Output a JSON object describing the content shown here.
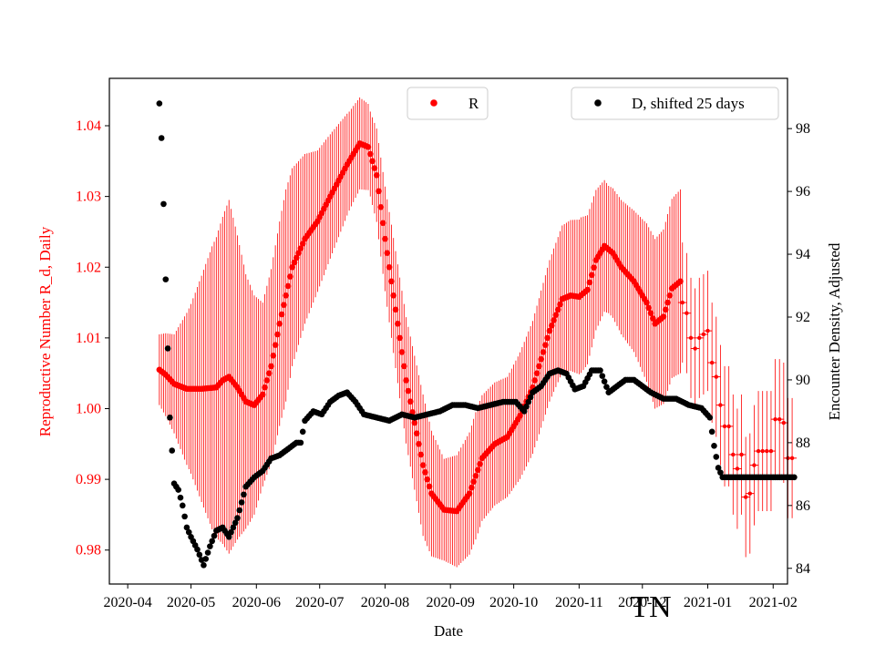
{
  "chart_data": {
    "type": "scatter",
    "title": "",
    "annotation": "TN",
    "xlabel": "Date",
    "ylabel_left": "Reproductive Number R_d, Daily",
    "ylabel_right": "Encounter Density, Adjusted",
    "x_ticks": [
      "2020-04",
      "2020-05",
      "2020-06",
      "2020-07",
      "2020-08",
      "2020-09",
      "2020-10",
      "2020-11",
      "2020-12",
      "2021-01",
      "2021-02"
    ],
    "x_range_days": [
      -8.7,
      312.8
    ],
    "y_left_ticks": [
      "0.98",
      "0.99",
      "1.00",
      "1.01",
      "1.02",
      "1.03",
      "1.04"
    ],
    "y_left_range": [
      0.9752,
      1.0467
    ],
    "y_right_ticks": [
      "84",
      "86",
      "88",
      "90",
      "92",
      "94",
      "96",
      "98"
    ],
    "y_right_range": [
      83.5,
      99.6
    ],
    "colors": {
      "R": "#ff0000",
      "D": "#000000",
      "axis_left": "#ff0000",
      "axis_right": "#000000"
    },
    "legend": {
      "R": {
        "label": "R",
        "placement": "upper-center"
      },
      "D": {
        "label": "D, shifted 25 days",
        "placement": "upper-right"
      }
    },
    "series": [
      {
        "name": "R",
        "axis": "left",
        "style": "dots-with-errorbars",
        "anchors": [
          [
            15,
            1.0055
          ],
          [
            18,
            1.0048
          ],
          [
            22,
            1.0035
          ],
          [
            28,
            1.0028
          ],
          [
            35,
            1.0028
          ],
          [
            42,
            1.003
          ],
          [
            45,
            1.004
          ],
          [
            48,
            1.0045
          ],
          [
            52,
            1.003
          ],
          [
            56,
            1.001
          ],
          [
            60,
            1.0005
          ],
          [
            64,
            1.002
          ],
          [
            68,
            1.006
          ],
          [
            72,
            1.012
          ],
          [
            78,
            1.02
          ],
          [
            84,
            1.024
          ],
          [
            90,
            1.0265
          ],
          [
            96,
            1.03
          ],
          [
            104,
            1.0345
          ],
          [
            110,
            1.0375
          ],
          [
            114,
            1.037
          ],
          [
            118,
            1.033
          ],
          [
            122,
            1.024
          ],
          [
            128,
            1.012
          ],
          [
            132,
            1.004
          ],
          [
            136,
            0.998
          ],
          [
            140,
            0.992
          ],
          [
            144,
            0.988
          ],
          [
            150,
            0.9857
          ],
          [
            156,
            0.9855
          ],
          [
            162,
            0.988
          ],
          [
            168,
            0.993
          ],
          [
            174,
            0.995
          ],
          [
            180,
            0.996
          ],
          [
            186,
            0.999
          ],
          [
            192,
            1.003
          ],
          [
            196,
            1.007
          ],
          [
            200,
            1.011
          ],
          [
            206,
            1.0155
          ],
          [
            210,
            1.016
          ],
          [
            214,
            1.0158
          ],
          [
            218,
            1.0168
          ],
          [
            222,
            1.021
          ],
          [
            226,
            1.023
          ],
          [
            230,
            1.022
          ],
          [
            234,
            1.02
          ],
          [
            240,
            1.018
          ],
          [
            246,
            1.015
          ],
          [
            250,
            1.012
          ],
          [
            254,
            1.013
          ],
          [
            258,
            1.017
          ],
          [
            262,
            1.018
          ]
        ],
        "errors": [
          [
            15,
            0.005
          ],
          [
            22,
            0.007
          ],
          [
            30,
            0.012
          ],
          [
            40,
            0.02
          ],
          [
            48,
            0.025
          ],
          [
            56,
            0.018
          ],
          [
            64,
            0.013
          ],
          [
            75,
            0.015
          ],
          [
            90,
            0.01
          ],
          [
            105,
            0.007
          ],
          [
            115,
            0.006
          ],
          [
            125,
            0.008
          ],
          [
            140,
            0.01
          ],
          [
            150,
            0.0072
          ],
          [
            165,
            0.009
          ],
          [
            180,
            0.0085
          ],
          [
            200,
            0.01
          ],
          [
            215,
            0.011
          ],
          [
            228,
            0.009
          ],
          [
            240,
            0.01
          ],
          [
            250,
            0.012
          ],
          [
            262,
            0.013
          ]
        ],
        "sparse_points": [
          [
            263,
            1.015
          ],
          [
            265,
            1.0135
          ],
          [
            267,
            1.01
          ],
          [
            269,
            1.0085
          ],
          [
            271,
            1.01
          ],
          [
            273,
            1.0105
          ],
          [
            275,
            1.011
          ],
          [
            277,
            1.0065
          ],
          [
            279,
            1.0045
          ],
          [
            281,
            1.0005
          ],
          [
            283,
            0.9975
          ],
          [
            285,
            0.9975
          ],
          [
            287,
            0.9935
          ],
          [
            289,
            0.9915
          ],
          [
            291,
            0.9935
          ],
          [
            293,
            0.9875
          ],
          [
            295,
            0.988
          ],
          [
            297,
            0.992
          ],
          [
            299,
            0.994
          ],
          [
            301,
            0.994
          ],
          [
            303,
            0.994
          ],
          [
            305,
            0.994
          ],
          [
            307,
            0.9985
          ],
          [
            309,
            0.9985
          ],
          [
            311,
            0.998
          ],
          [
            313,
            0.993
          ],
          [
            315,
            0.993
          ]
        ]
      },
      {
        "name": "D, shifted 25 days",
        "axis": "right",
        "style": "dots",
        "anchors": [
          [
            15,
            98.8
          ],
          [
            16,
            97.7
          ],
          [
            17,
            95.6
          ],
          [
            18,
            93.2
          ],
          [
            19,
            91.0
          ],
          [
            20,
            88.8
          ],
          [
            22,
            86.7
          ],
          [
            24,
            86.5
          ],
          [
            26,
            86.0
          ],
          [
            28,
            85.3
          ],
          [
            30,
            85.0
          ],
          [
            33,
            84.6
          ],
          [
            36,
            84.1
          ],
          [
            39,
            84.7
          ],
          [
            42,
            85.2
          ],
          [
            45,
            85.3
          ],
          [
            48,
            85.0
          ],
          [
            52,
            85.6
          ],
          [
            56,
            86.6
          ],
          [
            60,
            86.9
          ],
          [
            64,
            87.1
          ],
          [
            68,
            87.5
          ],
          [
            72,
            87.6
          ],
          [
            76,
            87.8
          ],
          [
            80,
            88.0
          ],
          [
            82,
            88.0
          ],
          [
            84,
            88.7
          ],
          [
            88,
            89.0
          ],
          [
            92,
            88.9
          ],
          [
            96,
            89.3
          ],
          [
            100,
            89.5
          ],
          [
            104,
            89.6
          ],
          [
            108,
            89.3
          ],
          [
            112,
            88.9
          ],
          [
            118,
            88.8
          ],
          [
            124,
            88.7
          ],
          [
            130,
            88.9
          ],
          [
            136,
            88.8
          ],
          [
            142,
            88.9
          ],
          [
            148,
            89.0
          ],
          [
            154,
            89.2
          ],
          [
            160,
            89.2
          ],
          [
            166,
            89.1
          ],
          [
            172,
            89.2
          ],
          [
            178,
            89.3
          ],
          [
            184,
            89.3
          ],
          [
            188,
            89.0
          ],
          [
            192,
            89.6
          ],
          [
            196,
            89.8
          ],
          [
            200,
            90.2
          ],
          [
            204,
            90.3
          ],
          [
            208,
            90.2
          ],
          [
            212,
            89.7
          ],
          [
            216,
            89.8
          ],
          [
            220,
            90.3
          ],
          [
            224,
            90.3
          ],
          [
            228,
            89.6
          ],
          [
            232,
            89.8
          ],
          [
            236,
            90.0
          ],
          [
            240,
            90.0
          ],
          [
            244,
            89.8
          ],
          [
            248,
            89.6
          ],
          [
            254,
            89.4
          ],
          [
            260,
            89.4
          ],
          [
            266,
            89.2
          ],
          [
            272,
            89.1
          ],
          [
            276,
            88.8
          ],
          [
            278,
            87.9
          ],
          [
            280,
            87.2
          ],
          [
            282,
            86.9
          ],
          [
            286,
            86.9
          ],
          [
            290,
            86.9
          ],
          [
            300,
            86.9
          ],
          [
            316,
            86.9
          ]
        ]
      }
    ]
  }
}
